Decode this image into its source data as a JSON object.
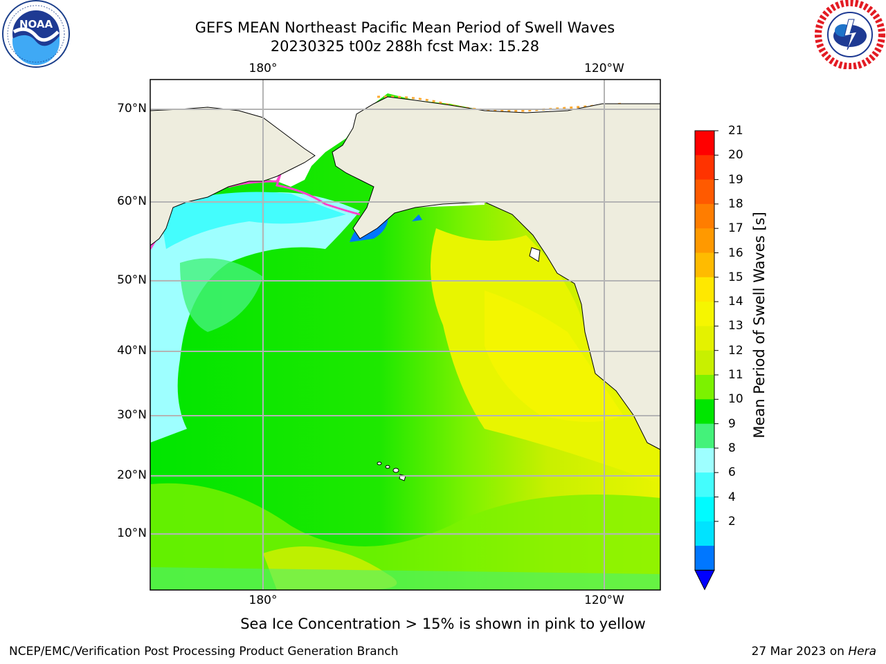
{
  "title": {
    "line1": "GEFS MEAN Northeast Pacific Mean Period of Swell Waves",
    "line2": "20230325 t00z 288h fcst   Max: 15.28"
  },
  "logos": {
    "left": "noaa-logo-icon",
    "right": "national-weather-service-logo-icon"
  },
  "map": {
    "lat_labels": [
      "70°N",
      "60°N",
      "50°N",
      "40°N",
      "30°N",
      "20°N",
      "10°N"
    ],
    "lon_labels_top": [
      "180°",
      "120°W"
    ],
    "lon_labels_bottom": [
      "180°",
      "120°W"
    ],
    "land_color": "#eeedde",
    "ice_region_color": "#ffffff",
    "grid_color": "#b4b4b4"
  },
  "colorbar": {
    "title": "Mean Period of Swell Waves [s]",
    "ticks": [
      "21",
      "20",
      "19",
      "18",
      "17",
      "16",
      "15",
      "14",
      "13",
      "12",
      "11",
      "10",
      "9",
      "8",
      "6",
      "4",
      "2"
    ],
    "colors_top_to_bottom": [
      "#ff0000",
      "#ff3300",
      "#ff5a00",
      "#ff7d00",
      "#ff9900",
      "#ffbb00",
      "#ffe800",
      "#f6f600",
      "#e4f200",
      "#c8f000",
      "#7cf200",
      "#00e600",
      "#44f27a",
      "#9effff",
      "#44fdfd",
      "#00fbff",
      "#00e3ff",
      "#0077ff"
    ],
    "extend_color": "#0000ff"
  },
  "notes": {
    "ice": "Sea Ice Concentration > 15% is shown in pink to yellow"
  },
  "footer": {
    "left": "NCEP/EMC/Verification Post Processing Product Generation Branch",
    "date": "27 Mar 2023 on ",
    "machine": "Hera"
  }
}
